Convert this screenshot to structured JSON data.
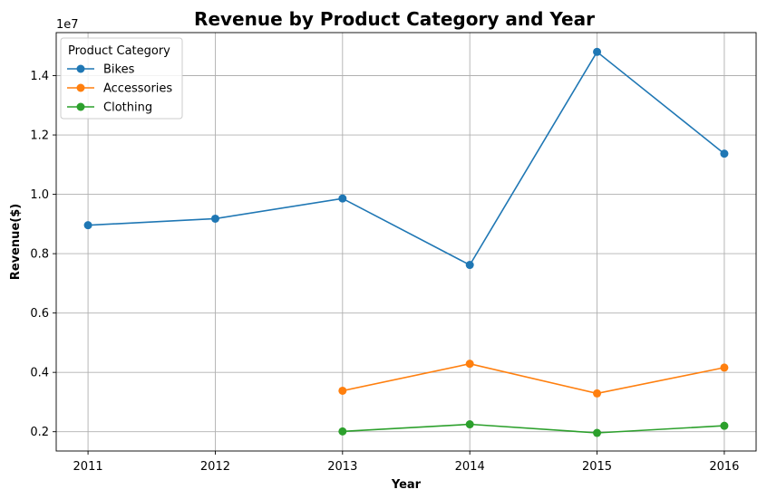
{
  "chart_data": {
    "type": "line",
    "title": "Revenue by Product Category and Year",
    "xlabel": "Year",
    "ylabel": "Revenue($)",
    "y_offset_label": "1e7",
    "x": [
      2011,
      2012,
      2013,
      2014,
      2015,
      2016
    ],
    "x_ticks": [
      "2011",
      "2012",
      "2013",
      "2014",
      "2015",
      "2016"
    ],
    "y_ticks": [
      "0.2",
      "0.4",
      "0.6",
      "0.8",
      "1.0",
      "1.2",
      "1.4"
    ],
    "y_tick_values": [
      2000000,
      4000000,
      6000000,
      8000000,
      10000000,
      12000000,
      14000000
    ],
    "ylim": [
      1350000,
      15450000
    ],
    "xlim": [
      2010.75,
      2016.25
    ],
    "grid": true,
    "legend": {
      "title": "Product Category",
      "placement": "top-left"
    },
    "series": [
      {
        "name": "Bikes",
        "color": "#1f77b4",
        "x": [
          2011,
          2012,
          2013,
          2014,
          2015,
          2016
        ],
        "values": [
          8960000,
          9180000,
          9860000,
          7620000,
          14800000,
          11370000
        ]
      },
      {
        "name": "Accessories",
        "color": "#ff7f0e",
        "x": [
          2013,
          2014,
          2015,
          2016
        ],
        "values": [
          3380000,
          4290000,
          3290000,
          4160000
        ]
      },
      {
        "name": "Clothing",
        "color": "#2ca02c",
        "x": [
          2013,
          2014,
          2015,
          2016
        ],
        "values": [
          2010000,
          2250000,
          1960000,
          2200000
        ]
      }
    ]
  }
}
